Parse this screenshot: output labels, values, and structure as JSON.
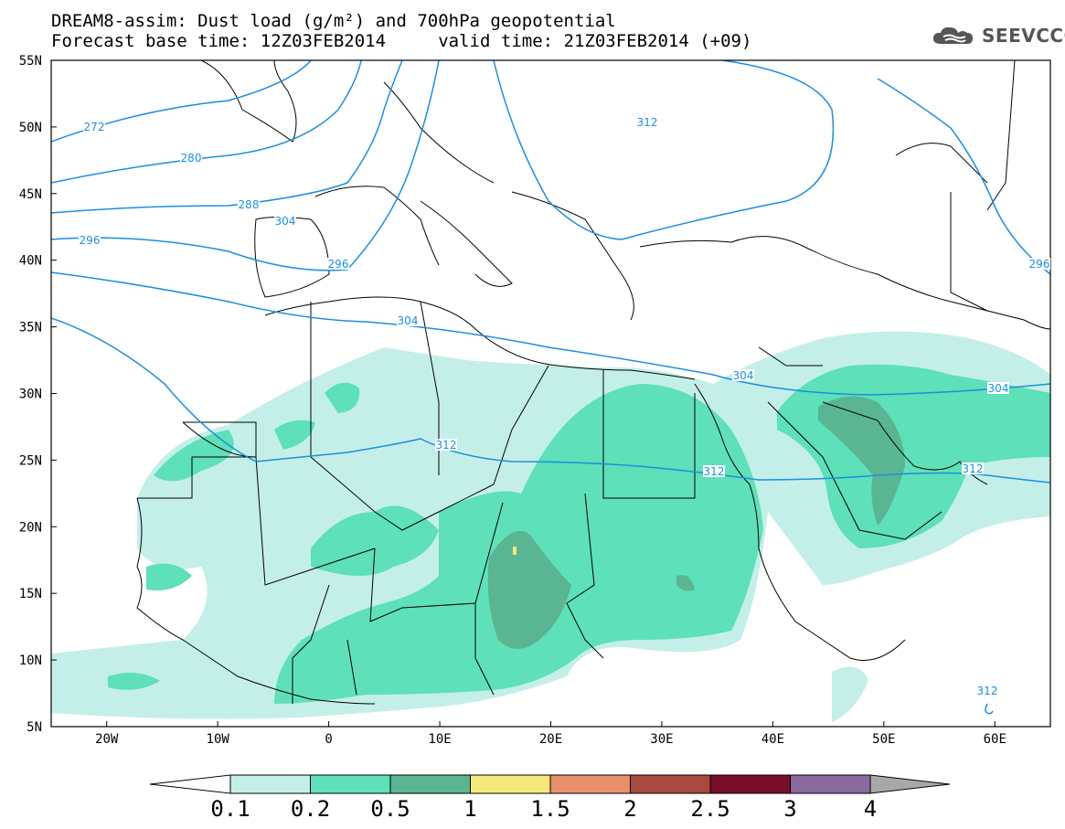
{
  "header": {
    "title_line1": "DREAM8-assim: Dust load (g/m²) and 700hPa geopotential",
    "title_line2": "Forecast base time: 12Z03FEB2014     valid time: 21Z03FEB2014 (+09)",
    "logo_text": "SEEVCCC",
    "logo_icon": "cloud-icon"
  },
  "map": {
    "lat_labels": [
      "55N",
      "50N",
      "45N",
      "40N",
      "35N",
      "30N",
      "25N",
      "20N",
      "15N",
      "10N",
      "5N"
    ],
    "lon_labels": [
      "20W",
      "10W",
      "0",
      "10E",
      "20E",
      "30E",
      "40E",
      "50E",
      "60E"
    ],
    "contour_labels": [
      "272",
      "280",
      "288",
      "296",
      "296",
      "296",
      "304",
      "304",
      "304",
      "304",
      "312",
      "312",
      "312",
      "312",
      "312"
    ],
    "colors": {
      "contour": "#1a8fe0",
      "border": "#000000",
      "dust_0_1": "#c4efe9",
      "dust_0_2": "#5ee0b8",
      "dust_0_5": "#5ab592",
      "dust_1": "#f5e878"
    }
  },
  "colorbar": {
    "labels": [
      "0.1",
      "0.2",
      "0.5",
      "1",
      "1.5",
      "2",
      "2.5",
      "3",
      "4"
    ],
    "colors": [
      "#ffffff",
      "#c4efe9",
      "#5ee0b8",
      "#5ab592",
      "#f5e878",
      "#e8906a",
      "#a84a3f",
      "#7a0f2a",
      "#8a6a9e",
      "#a8a8a8"
    ]
  }
}
